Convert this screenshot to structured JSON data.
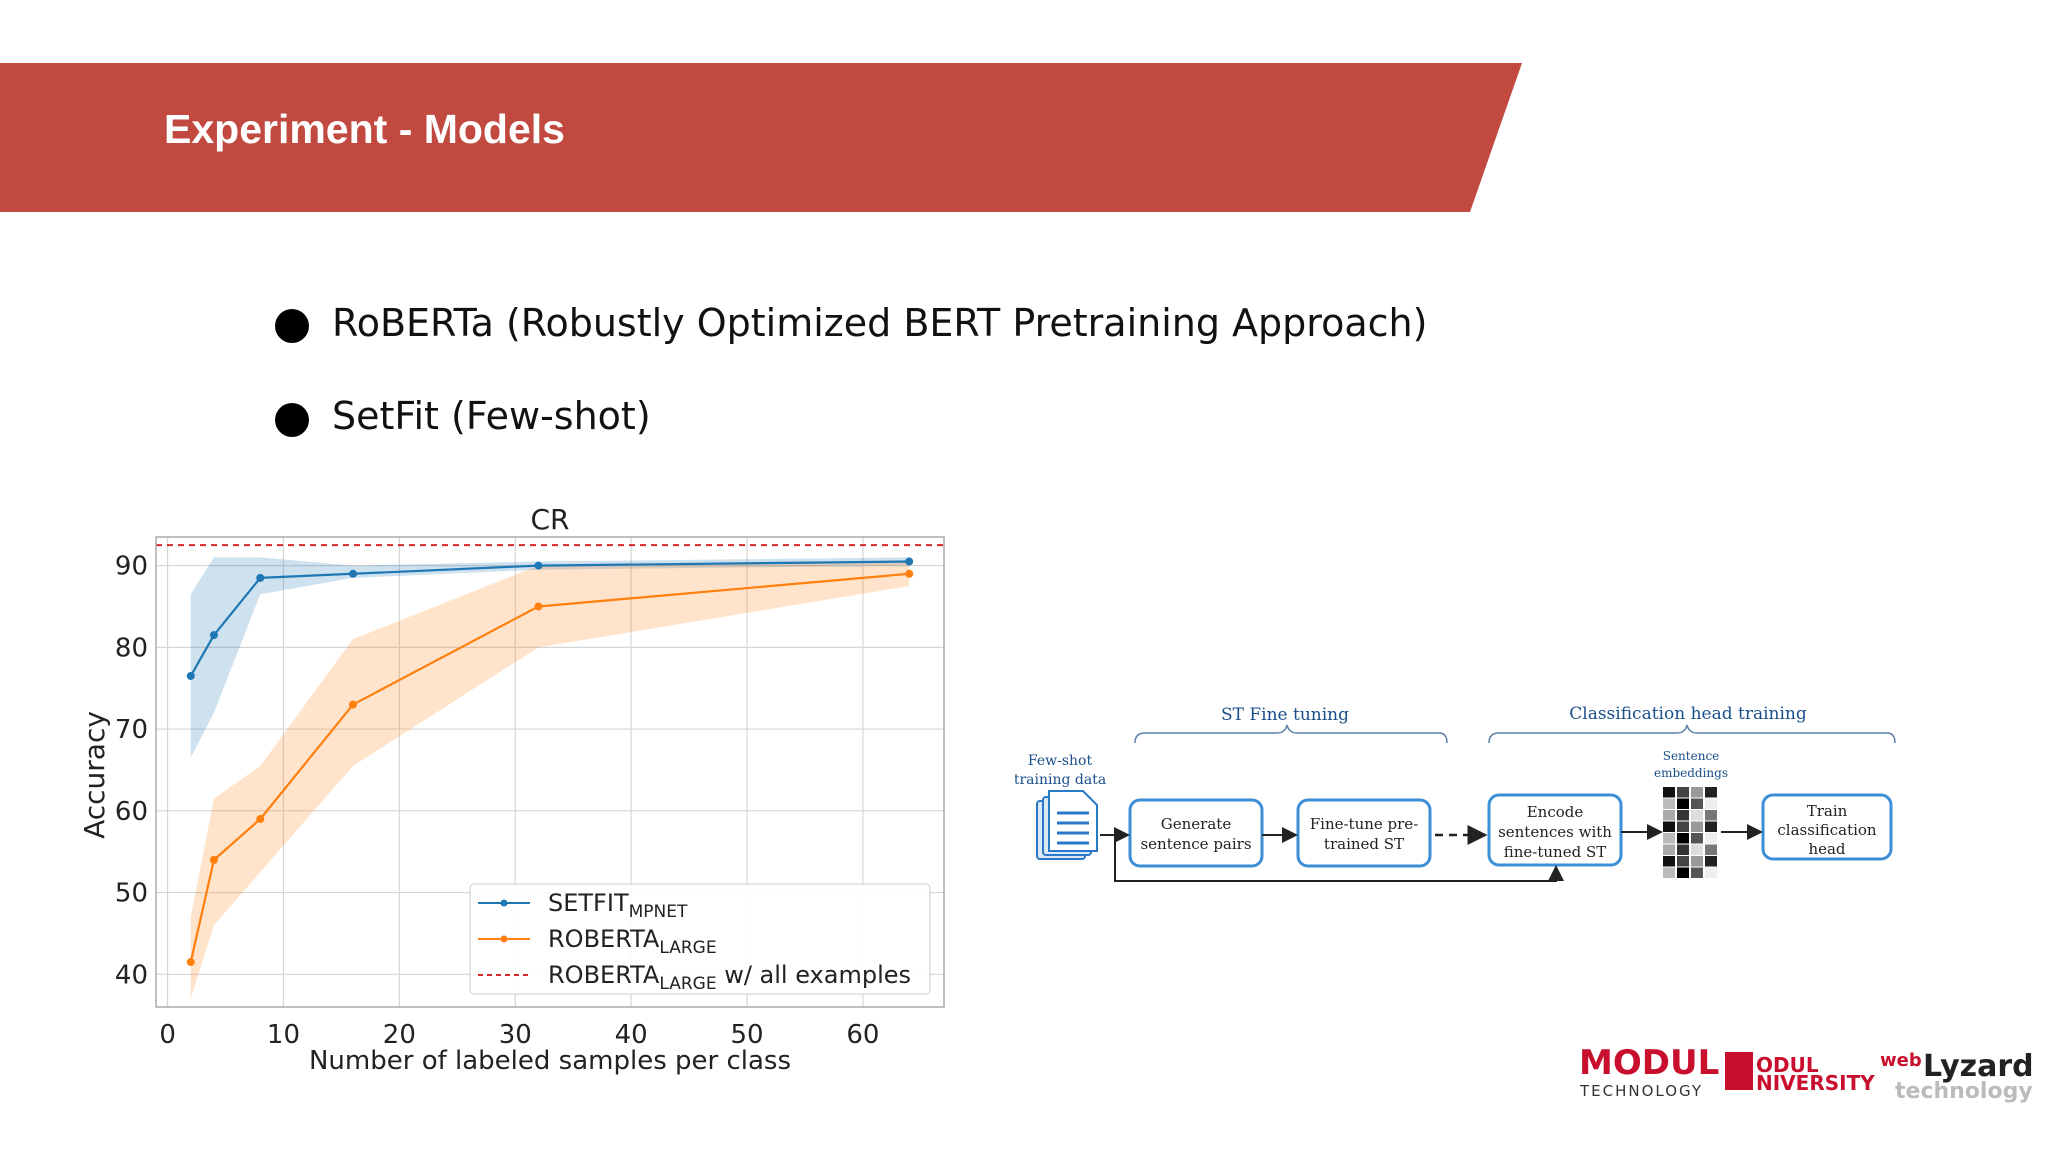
{
  "slide": {
    "title": "Experiment - Models",
    "bullets": [
      "RoBERTa (Robustly Optimized BERT Pretraining Approach)",
      "SetFit (Few-shot)"
    ],
    "colors": {
      "banner": "#c1493f",
      "setfit": "#1f77b4",
      "roberta": "#ff7f0e",
      "all_examples": "#d62728"
    }
  },
  "chart_data": {
    "type": "line",
    "title": "CR",
    "xlabel": "Number of labeled samples per class",
    "ylabel": "Accuracy",
    "xlim": [
      -1,
      67
    ],
    "ylim": [
      36,
      93.5
    ],
    "xticks": [
      0,
      10,
      20,
      30,
      40,
      50,
      60
    ],
    "yticks": [
      40,
      50,
      60,
      70,
      80,
      90
    ],
    "grid": true,
    "legend_position": "bottom-right",
    "x": [
      2,
      4,
      8,
      16,
      32,
      64
    ],
    "series": [
      {
        "name": "SETFIT",
        "sub": "MPNET",
        "values": [
          76.5,
          81.5,
          88.5,
          89,
          90,
          90.5
        ],
        "lower": [
          66.5,
          72,
          86.5,
          88.5,
          89.5,
          90
        ],
        "upper": [
          86.5,
          91,
          91,
          90,
          90.5,
          91
        ],
        "color": "#1f77b4"
      },
      {
        "name": "ROBERTA",
        "sub": "LARGE",
        "values": [
          41.5,
          54,
          59,
          73,
          85,
          89
        ],
        "lower": [
          37,
          46,
          52.5,
          65.5,
          80,
          87.5
        ],
        "upper": [
          47,
          61.5,
          65.5,
          81,
          90,
          90.5
        ],
        "color": "#ff7f0e"
      },
      {
        "name": "ROBERTA",
        "sub": "LARGE",
        "suffix": " w/ all examples",
        "constant": 92.5,
        "color": "#d62728",
        "dashed": true
      }
    ]
  },
  "diagram": {
    "groups": {
      "st_fine_tuning": "ST Fine tuning",
      "classification_head": "Classification head training"
    },
    "input_label_1": "Few-shot",
    "input_label_2": "training data",
    "embeddings_label_1": "Sentence",
    "embeddings_label_2": "embeddings",
    "boxes": [
      [
        "Generate",
        "sentence pairs"
      ],
      [
        "Fine-tune pre-",
        "trained ST"
      ],
      [
        "Encode",
        "sentences with",
        "fine-tuned ST"
      ],
      [
        "Train",
        "classification",
        "head"
      ]
    ]
  },
  "logos": {
    "modul_tech_main": "MODUL",
    "modul_tech_sub": "TECHNOLOGY",
    "modul_uni_1": "ODUL",
    "modul_uni_2": "NIVERSITY",
    "weblyzard_web": "web",
    "weblyzard_name": "Lyzard",
    "weblyzard_sub": "technology"
  }
}
